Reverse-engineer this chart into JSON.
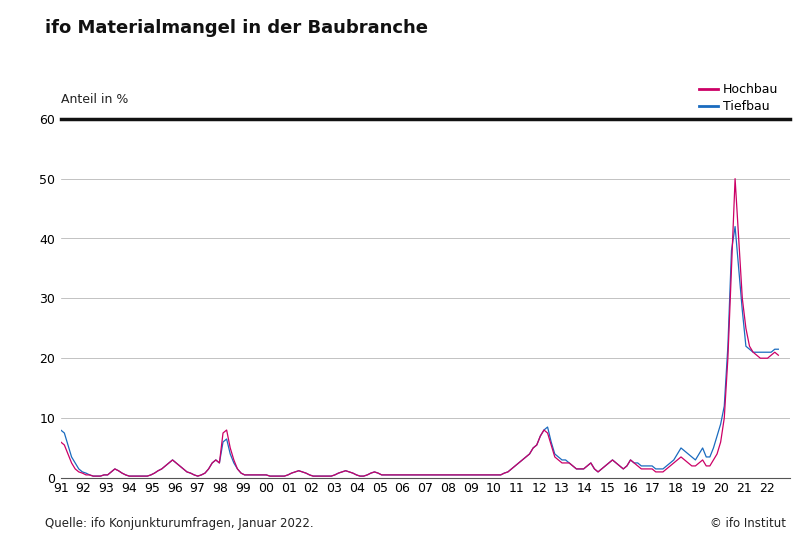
{
  "title": "ifo Materialmangel in der Baubranche",
  "ylabel": "Anteil in %",
  "source": "Quelle: ifo Konjunkturumfragen, Januar 2022.",
  "copyright": "© ifo Institut",
  "legend_hochbau": "Hochbau",
  "legend_tiefbau": "Tiefbau",
  "color_hochbau": "#cc0066",
  "color_tiefbau": "#1a6bbf",
  "ylim": [
    0,
    60
  ],
  "yticks": [
    0,
    10,
    20,
    30,
    40,
    50,
    60
  ],
  "xtick_labels": [
    "91",
    "92",
    "93",
    "94",
    "95",
    "96",
    "97",
    "98",
    "99",
    "00",
    "01",
    "02",
    "03",
    "04",
    "05",
    "06",
    "07",
    "08",
    "09",
    "10",
    "11",
    "12",
    "13",
    "14",
    "15",
    "16",
    "17",
    "18",
    "19",
    "20",
    "21",
    "22"
  ],
  "background_color": "#ffffff",
  "title_fontsize": 13,
  "annotation_fontsize": 9,
  "hochbau": [
    6.0,
    5.5,
    4.0,
    2.5,
    1.5,
    1.0,
    0.8,
    0.5,
    0.5,
    0.3,
    0.3,
    0.3,
    0.5,
    0.5,
    1.0,
    1.5,
    1.2,
    0.8,
    0.5,
    0.3,
    0.3,
    0.3,
    0.3,
    0.3,
    0.3,
    0.5,
    0.8,
    1.2,
    1.5,
    2.0,
    2.5,
    3.0,
    2.5,
    2.0,
    1.5,
    1.0,
    0.8,
    0.5,
    0.3,
    0.5,
    0.8,
    1.5,
    2.5,
    3.0,
    2.5,
    7.5,
    8.0,
    5.0,
    3.0,
    1.5,
    0.8,
    0.5,
    0.5,
    0.5,
    0.5,
    0.5,
    0.5,
    0.5,
    0.3,
    0.3,
    0.3,
    0.3,
    0.3,
    0.5,
    0.8,
    1.0,
    1.2,
    1.0,
    0.8,
    0.5,
    0.3,
    0.3,
    0.3,
    0.3,
    0.3,
    0.3,
    0.5,
    0.8,
    1.0,
    1.2,
    1.0,
    0.8,
    0.5,
    0.3,
    0.3,
    0.5,
    0.8,
    1.0,
    0.8,
    0.5,
    0.5,
    0.5,
    0.5,
    0.5,
    0.5,
    0.5,
    0.5,
    0.5,
    0.5,
    0.5,
    0.5,
    0.5,
    0.5,
    0.5,
    0.5,
    0.5,
    0.5,
    0.5,
    0.5,
    0.5,
    0.5,
    0.5,
    0.5,
    0.5,
    0.5,
    0.5,
    0.5,
    0.5,
    0.5,
    0.5,
    0.5,
    0.5,
    0.5,
    0.8,
    1.0,
    1.5,
    2.0,
    2.5,
    3.0,
    3.5,
    4.0,
    5.0,
    5.5,
    7.0,
    8.0,
    7.5,
    5.5,
    3.5,
    3.0,
    2.5,
    2.5,
    2.5,
    2.0,
    1.5,
    1.5,
    1.5,
    2.0,
    2.5,
    1.5,
    1.0,
    1.5,
    2.0,
    2.5,
    3.0,
    2.5,
    2.0,
    1.5,
    2.0,
    3.0,
    2.5,
    2.0,
    1.5,
    1.5,
    1.5,
    1.5,
    1.0,
    1.0,
    1.0,
    1.5,
    2.0,
    2.5,
    3.0,
    3.5,
    3.0,
    2.5,
    2.0,
    2.0,
    2.5,
    3.0,
    2.0,
    2.0,
    3.0,
    4.0,
    6.0,
    10.0,
    20.0,
    35.0,
    50.0,
    40.0,
    30.0,
    25.0,
    22.0,
    21.0,
    20.5,
    20.0,
    20.0,
    20.0,
    20.5,
    21.0,
    20.5
  ],
  "tiefbau": [
    8.0,
    7.5,
    5.5,
    3.5,
    2.5,
    1.5,
    1.0,
    0.8,
    0.5,
    0.3,
    0.3,
    0.3,
    0.5,
    0.5,
    1.0,
    1.5,
    1.2,
    0.8,
    0.5,
    0.3,
    0.3,
    0.3,
    0.3,
    0.3,
    0.3,
    0.5,
    0.8,
    1.2,
    1.5,
    2.0,
    2.5,
    3.0,
    2.5,
    2.0,
    1.5,
    1.0,
    0.8,
    0.5,
    0.3,
    0.5,
    0.8,
    1.5,
    2.5,
    3.0,
    2.5,
    6.0,
    6.5,
    4.0,
    2.5,
    1.5,
    0.8,
    0.5,
    0.5,
    0.5,
    0.5,
    0.5,
    0.5,
    0.5,
    0.3,
    0.3,
    0.3,
    0.3,
    0.3,
    0.5,
    0.8,
    1.0,
    1.2,
    1.0,
    0.8,
    0.5,
    0.3,
    0.3,
    0.3,
    0.3,
    0.3,
    0.3,
    0.5,
    0.8,
    1.0,
    1.2,
    1.0,
    0.8,
    0.5,
    0.3,
    0.3,
    0.5,
    0.8,
    1.0,
    0.8,
    0.5,
    0.5,
    0.5,
    0.5,
    0.5,
    0.5,
    0.5,
    0.5,
    0.5,
    0.5,
    0.5,
    0.5,
    0.5,
    0.5,
    0.5,
    0.5,
    0.5,
    0.5,
    0.5,
    0.5,
    0.5,
    0.5,
    0.5,
    0.5,
    0.5,
    0.5,
    0.5,
    0.5,
    0.5,
    0.5,
    0.5,
    0.5,
    0.5,
    0.5,
    0.8,
    1.0,
    1.5,
    2.0,
    2.5,
    3.0,
    3.5,
    4.0,
    5.0,
    5.5,
    7.0,
    8.0,
    8.5,
    6.0,
    4.0,
    3.5,
    3.0,
    3.0,
    2.5,
    2.0,
    1.5,
    1.5,
    1.5,
    2.0,
    2.5,
    1.5,
    1.0,
    1.5,
    2.0,
    2.5,
    3.0,
    2.5,
    2.0,
    1.5,
    2.0,
    3.0,
    2.5,
    2.5,
    2.0,
    2.0,
    2.0,
    2.0,
    1.5,
    1.5,
    1.5,
    2.0,
    2.5,
    3.0,
    4.0,
    5.0,
    4.5,
    4.0,
    3.5,
    3.0,
    4.0,
    5.0,
    3.5,
    3.5,
    5.0,
    7.0,
    9.0,
    12.0,
    22.0,
    38.0,
    42.0,
    35.0,
    28.0,
    22.0,
    21.5,
    21.0,
    21.0,
    21.0,
    21.0,
    21.0,
    21.0,
    21.5,
    21.5
  ]
}
